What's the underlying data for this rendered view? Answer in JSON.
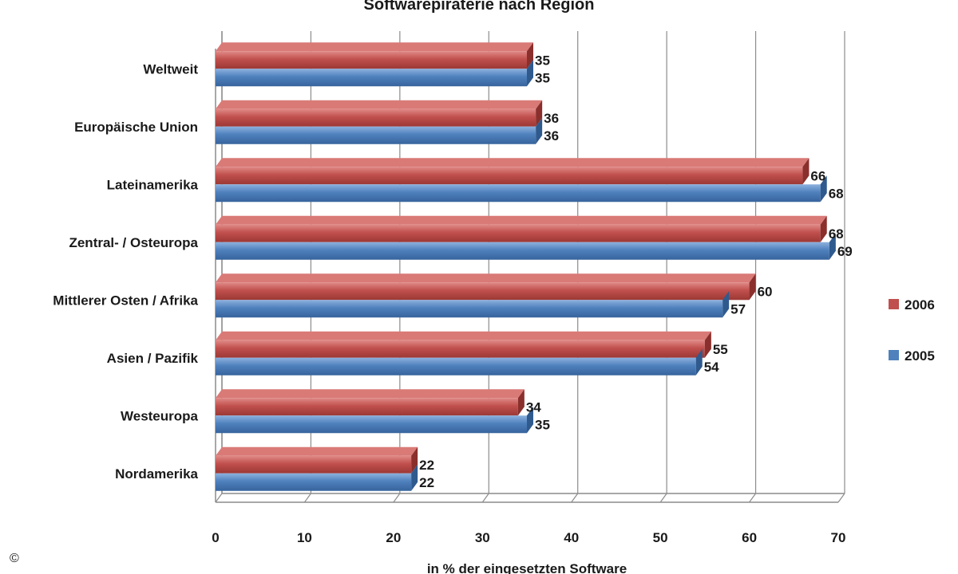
{
  "chart_data": {
    "type": "bar",
    "orientation": "horizontal",
    "title": "Softwarepiraterie nach Region",
    "xlabel": "in % der eingesetzten Software",
    "ylabel": "",
    "xlim": [
      0,
      70
    ],
    "x_ticks": [
      0,
      10,
      20,
      30,
      40,
      50,
      60,
      70
    ],
    "grid": true,
    "legend_position": "right",
    "categories": [
      "Weltweit",
      "Europäische Union",
      "Lateinamerika",
      "Zentral- / Osteuropa",
      "Mittlerer Osten / Afrika",
      "Asien / Pazifik",
      "Westeuropa",
      "Nordamerika"
    ],
    "series": [
      {
        "name": "2006",
        "color": "#c0504d",
        "values": [
          35,
          36,
          66,
          68,
          60,
          55,
          34,
          22
        ]
      },
      {
        "name": "2005",
        "color": "#4f81bd",
        "values": [
          35,
          36,
          68,
          69,
          57,
          54,
          35,
          22
        ]
      }
    ]
  },
  "copyright_symbol": "©"
}
